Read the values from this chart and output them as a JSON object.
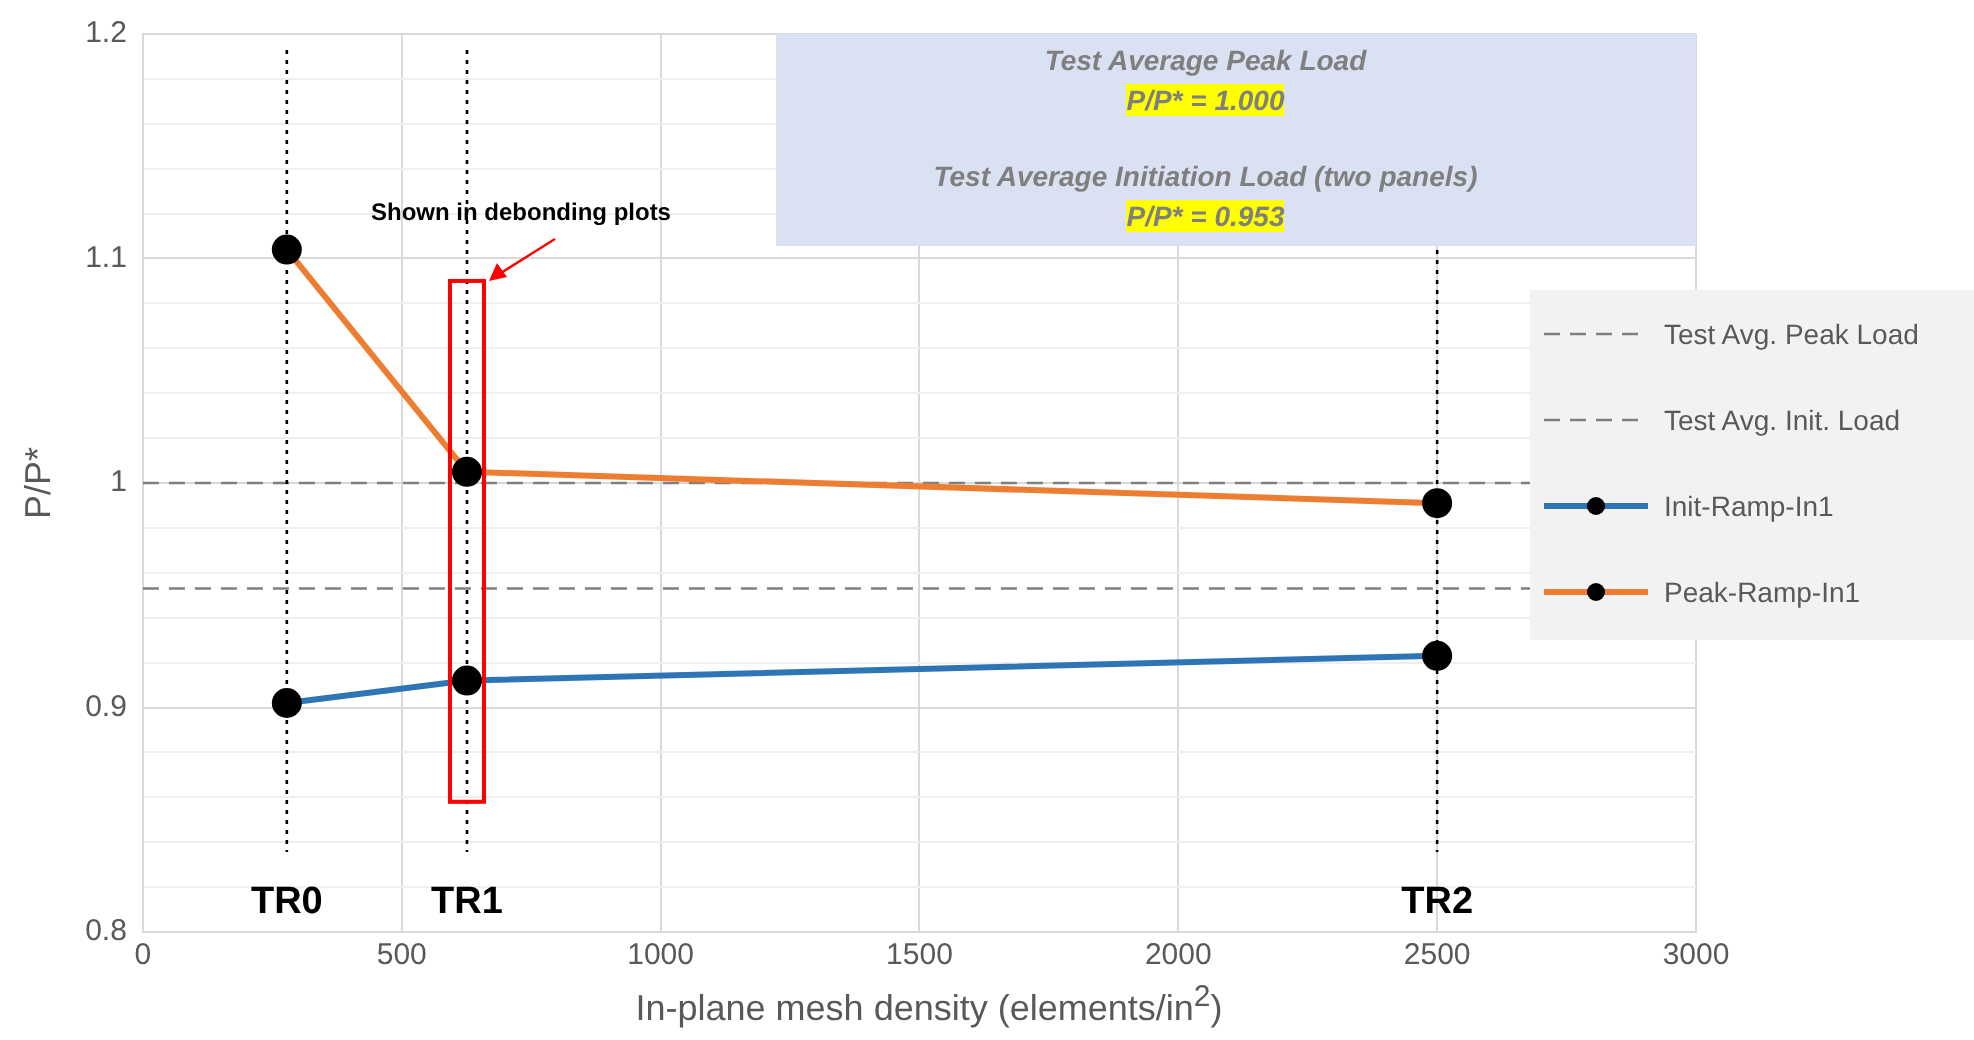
{
  "chart_data": {
    "type": "line",
    "xlabel": "In-plane mesh density (elements/in$^{2}$)",
    "ylabel": "P/P*",
    "xlim": [
      0,
      3000
    ],
    "xticks": [
      0,
      500,
      1000,
      1500,
      2000,
      2500,
      3000
    ],
    "ylim": [
      0.8,
      1.2
    ],
    "yticks": [
      0.8,
      {
        "value": 0.82,
        "label": null
      },
      {
        "value": 0.84,
        "label": null
      },
      {
        "value": 0.86,
        "label": null
      },
      {
        "value": 0.88,
        "label": null
      },
      0.9,
      {
        "value": 0.92,
        "label": null
      },
      {
        "value": 0.94,
        "label": null
      },
      {
        "value": 0.96,
        "label": null
      },
      {
        "value": 0.98,
        "label": null
      },
      1,
      {
        "value": 1.02,
        "label": null
      },
      {
        "value": 1.04,
        "label": null
      },
      {
        "value": 1.06,
        "label": null
      },
      {
        "value": 1.08,
        "label": null
      },
      1.1,
      {
        "value": 1.12,
        "label": null
      },
      {
        "value": 1.14,
        "label": null
      },
      {
        "value": 1.16,
        "label": null
      },
      {
        "value": 1.18,
        "label": null
      },
      1.2
    ],
    "x": [
      278,
      626,
      2500
    ],
    "series": [
      {
        "name": "Init-Ramp-In1",
        "color": "#2e75b6",
        "values": [
          0.902,
          0.912,
          0.923
        ]
      },
      {
        "name": "Peak-Ramp-In1",
        "color": "#ed7d31",
        "values": [
          1.104,
          1.005,
          0.991
        ]
      }
    ],
    "marker": "circle",
    "line_style": "solid",
    "grid": true,
    "legend": "right",
    "ref_lines": [
      {
        "axis": "y",
        "value": 1,
        "label": "Test Avg. Peak Load",
        "color": "#7f7f7f",
        "line_style": "dashed"
      },
      {
        "axis": "y",
        "value": 0.953,
        "label": "Test Avg. Init. Load",
        "color": "#7f7f7f",
        "line_style": "dashed"
      },
      {
        "axis": "x",
        "value": 278,
        "label": "TR0",
        "color": "#000000",
        "line_style": "dotted"
      },
      {
        "axis": "x",
        "value": 626,
        "label": "TR1",
        "color": "#000000",
        "line_style": "dotted"
      },
      {
        "axis": "x",
        "value": 2500,
        "label": "TR2",
        "color": "#000000",
        "line_style": "dotted"
      }
    ],
    "annotations": [
      "Test Average Peak Load",
      "P/P* = 1.000",
      "Test Average Initiation Load (two panels)",
      "P/P* = 0.953",
      {
        "text": "Shown in debonding plots",
        "x": 626,
        "y": 1.09
      }
    ]
  }
}
